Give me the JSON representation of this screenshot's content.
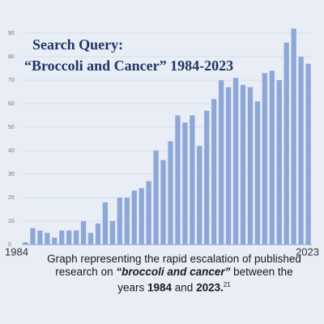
{
  "chart_data": {
    "type": "bar",
    "title": [
      "Search Query:",
      "“Broccoli and Cancer” 1984-2023"
    ],
    "categories": [
      "1984",
      null,
      null,
      null,
      null,
      null,
      null,
      null,
      null,
      null,
      null,
      null,
      null,
      null,
      null,
      null,
      null,
      null,
      null,
      null,
      null,
      null,
      null,
      null,
      null,
      null,
      null,
      null,
      null,
      null,
      null,
      null,
      null,
      null,
      null,
      null,
      null,
      null,
      null,
      "2023"
    ],
    "values": [
      1,
      7,
      6,
      5,
      3,
      6,
      6,
      6,
      10,
      5,
      9,
      18,
      10,
      20,
      20,
      23,
      24,
      27,
      40,
      36,
      44,
      55,
      52,
      55,
      42,
      57,
      62,
      70,
      67,
      71,
      68,
      67,
      61,
      73,
      74,
      70,
      86,
      92,
      80,
      77
    ],
    "color": "#8ea7d8",
    "ylim": [
      0,
      90
    ],
    "yticks": [
      0,
      10,
      20,
      30,
      40,
      50,
      60,
      70,
      80,
      90
    ],
    "grid": true,
    "caption": [
      "Graph representing the rapid escalation of published research on ",
      "“broccoli and cancer”",
      " between the years ",
      "1984",
      " and ",
      "2023.",
      "21"
    ]
  }
}
